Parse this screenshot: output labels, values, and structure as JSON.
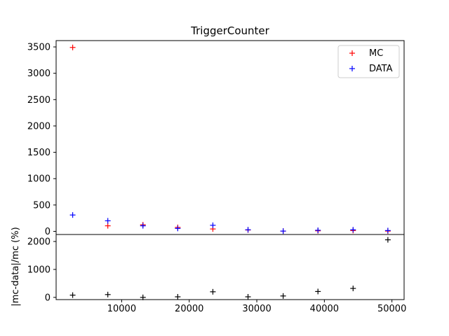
{
  "chart_data": {
    "type": "scatter",
    "title": "TriggerCounter",
    "grid": false,
    "top_panel": {
      "ylim": [
        -60,
        3620
      ],
      "yticks": [
        0,
        500,
        1000,
        1500,
        2000,
        2500,
        3000,
        3500
      ],
      "legend_position": "top-right",
      "series": [
        {
          "name": "MC",
          "color": "#ff0000",
          "marker": "+",
          "x": [
            2750,
            7950,
            13150,
            18300,
            23500,
            28700,
            33900,
            39050,
            44250,
            49400
          ],
          "y": [
            3490,
            105,
            125,
            75,
            45,
            25,
            5,
            10,
            15,
            5
          ]
        },
        {
          "name": "DATA",
          "color": "#0000ff",
          "marker": "+",
          "x": [
            2750,
            7950,
            13150,
            18300,
            23500,
            28700,
            33900,
            39050,
            44250,
            49400
          ],
          "y": [
            310,
            200,
            105,
            55,
            115,
            30,
            5,
            20,
            30,
            15
          ]
        }
      ]
    },
    "bottom_panel": {
      "ylabel": "|mc-data|/mc (%)",
      "ylim": [
        -80,
        2250
      ],
      "yticks": [
        0,
        1000,
        2000
      ],
      "series": [
        {
          "color": "#000000",
          "marker": "+",
          "x": [
            2750,
            7950,
            13150,
            18300,
            23500,
            28700,
            33900,
            39050,
            44250,
            49400
          ],
          "y": [
            80,
            100,
            0,
            20,
            200,
            20,
            50,
            210,
            320,
            2060
          ]
        }
      ]
    },
    "xaxis": {
      "xlim": [
        300,
        51800
      ],
      "xticks": [
        10000,
        20000,
        30000,
        40000,
        50000
      ],
      "xtick_labels": [
        "10000",
        "20000",
        "30000",
        "40000",
        "50000"
      ]
    }
  }
}
